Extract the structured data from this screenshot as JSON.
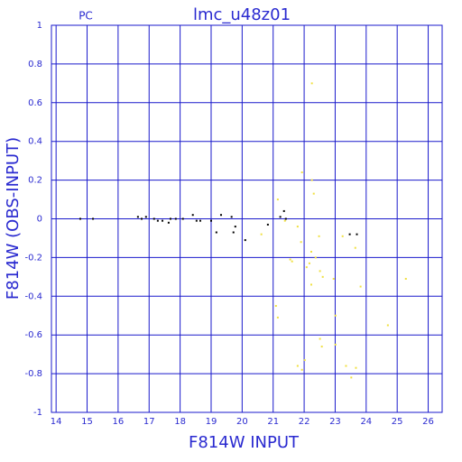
{
  "chart_data": {
    "type": "scatter",
    "title": "lmc_u48z01",
    "subtitle": "PC",
    "x_label": "F814W INPUT",
    "y_label": "F814W (OBS-INPUT)",
    "xlim": [
      13.85,
      26.45
    ],
    "ylim": [
      -1,
      1
    ],
    "xticks": [
      14,
      15,
      16,
      17,
      18,
      19,
      20,
      21,
      22,
      23,
      24,
      25,
      26
    ],
    "yticks": [
      -1,
      -0.8,
      -0.6,
      -0.4,
      -0.2,
      0,
      0.2,
      0.4,
      0.6,
      0.8,
      1
    ],
    "grid": true,
    "grid_color": "#1a1acc",
    "text_color": "#2a2ad0",
    "series": [
      {
        "color": "#000000",
        "x": [
          14.78,
          15.19,
          16.64,
          16.76,
          16.9,
          17.16,
          17.28,
          17.43,
          17.63,
          17.69,
          17.86,
          18.09,
          18.41,
          18.53,
          18.65,
          19.0,
          19.17,
          19.32,
          19.66,
          19.72,
          19.78,
          20.1,
          20.83,
          21.23,
          21.35,
          21.41,
          23.47,
          23.7
        ],
        "values": [
          0.0,
          0.0,
          0.01,
          0.0,
          0.01,
          0.0,
          -0.01,
          -0.01,
          -0.02,
          0.0,
          0.0,
          0.0,
          0.02,
          -0.01,
          -0.01,
          -0.01,
          -0.07,
          0.02,
          0.01,
          -0.07,
          -0.04,
          -0.11,
          -0.03,
          0.01,
          0.04,
          0.0,
          -0.08,
          -0.08
        ]
      },
      {
        "color": "#f0e040",
        "x": [
          20.62,
          21.15,
          21.38,
          21.93,
          22.25,
          22.25,
          22.31,
          21.79,
          21.9,
          22.08,
          22.17,
          22.23,
          22.23,
          22.37,
          22.48,
          22.51,
          22.6,
          22.95,
          21.61,
          21.55,
          21.09,
          21.15,
          22.51,
          22.57,
          22.02,
          21.79,
          21.93,
          23.35,
          23.67,
          23.52,
          23.01,
          23.01,
          23.24,
          23.65,
          23.82,
          24.7,
          25.28
        ],
        "values": [
          -0.08,
          0.1,
          -0.01,
          0.24,
          0.7,
          0.2,
          0.13,
          -0.04,
          -0.12,
          -0.25,
          -0.23,
          -0.17,
          -0.34,
          -0.2,
          -0.09,
          -0.27,
          -0.3,
          -0.31,
          -0.22,
          -0.21,
          -0.45,
          -0.51,
          -0.62,
          -0.66,
          -0.73,
          -0.76,
          -0.78,
          -0.76,
          -0.77,
          -0.82,
          -0.5,
          -0.65,
          -0.09,
          -0.15,
          -0.35,
          -0.55,
          -0.31
        ]
      }
    ]
  }
}
